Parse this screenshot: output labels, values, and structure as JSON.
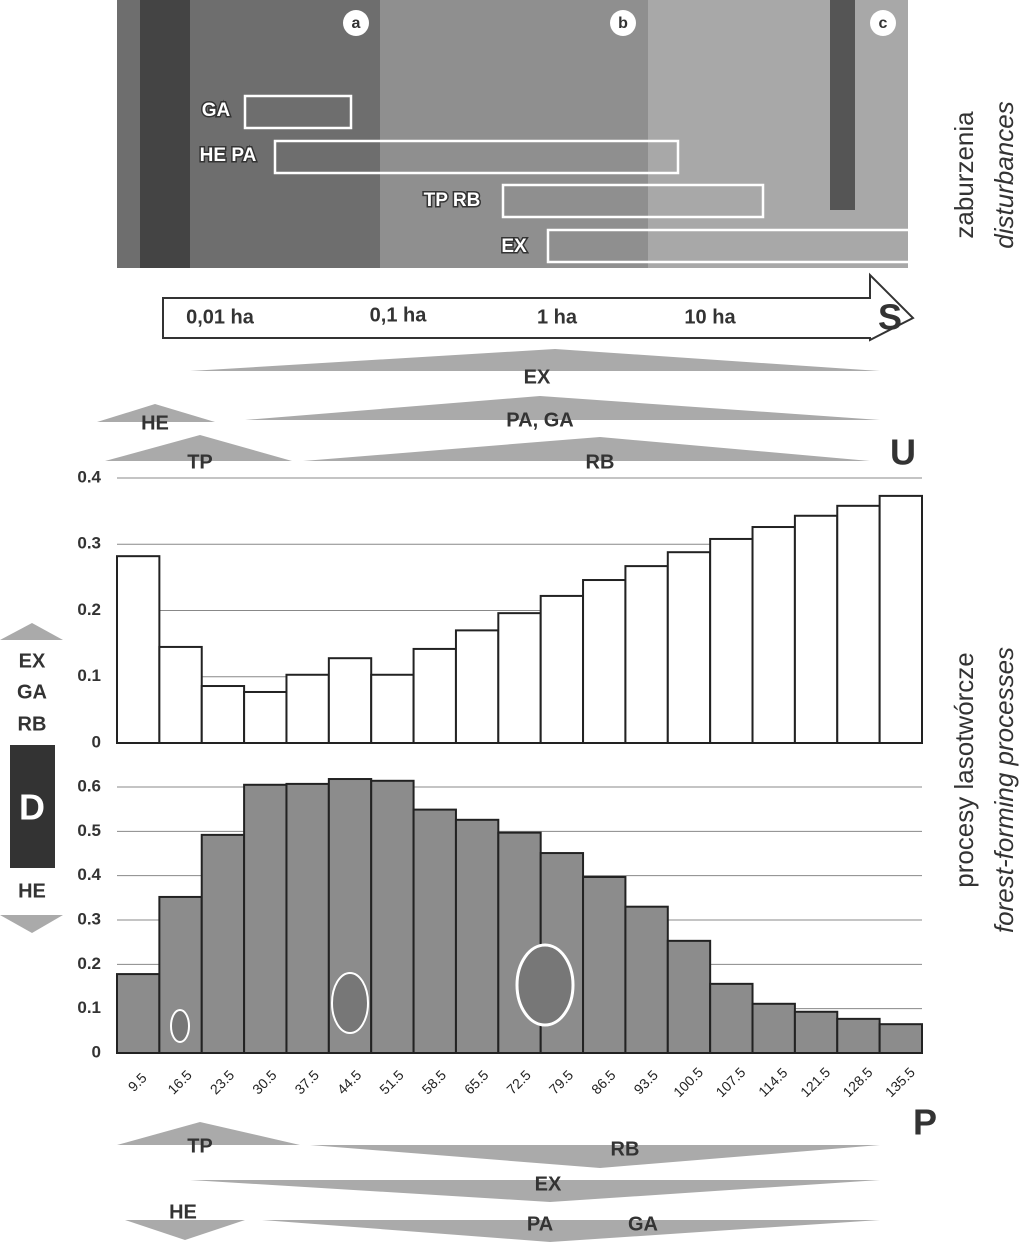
{
  "photo": {
    "panels": [
      "a",
      "b",
      "c"
    ],
    "boxes": [
      "GA",
      "HE PA",
      "TP RB",
      "EX"
    ]
  },
  "scale": {
    "labels": [
      "0,01 ha",
      "0,1 ha",
      "1 ha",
      "10 ha"
    ],
    "symbol": "S"
  },
  "upper_processes": {
    "labels": [
      "EX",
      "HE",
      "PA, GA",
      "TP",
      "RB"
    ],
    "symbol": "U"
  },
  "lower_processes": {
    "labels": [
      "TP",
      "RB",
      "EX",
      "HE",
      "PA",
      "GA"
    ],
    "symbol": "P"
  },
  "left_legend": {
    "up": [
      "EX",
      "GA",
      "RB"
    ],
    "symbol": "D",
    "down": [
      "HE"
    ]
  },
  "side_titles": {
    "top": [
      "zaburzenia",
      "disturbances"
    ],
    "bottom": [
      "procesy lasotwórcze",
      "forest-forming processes"
    ]
  },
  "chart_data": [
    {
      "type": "bar",
      "color": "#ffffff",
      "values": [
        0.282,
        0.145,
        0.086,
        0.077,
        0.103,
        0.128,
        0.103,
        0.142,
        0.17,
        0.196,
        0.222,
        0.246,
        0.267,
        0.288,
        0.308,
        0.326,
        0.343,
        0.358,
        0.373
      ],
      "ylim": [
        0,
        0.4
      ],
      "yticks": [
        0,
        0.1,
        0.2,
        0.3,
        0.4
      ],
      "grid": true
    },
    {
      "type": "bar",
      "color": "#8c8c8c",
      "categories": [
        "9.5",
        "16.5",
        "23.5",
        "30.5",
        "37.5",
        "44.5",
        "51.5",
        "58.5",
        "65.5",
        "72.5",
        "79.5",
        "86.5",
        "93.5",
        "100.5",
        "107.5",
        "114.5",
        "121.5",
        "128.5",
        "135.5"
      ],
      "values": [
        0.178,
        0.352,
        0.492,
        0.605,
        0.607,
        0.618,
        0.614,
        0.549,
        0.526,
        0.497,
        0.451,
        0.397,
        0.33,
        0.253,
        0.156,
        0.111,
        0.093,
        0.077,
        0.065
      ],
      "ylim": [
        0,
        0.6
      ],
      "yticks": [
        0,
        0.1,
        0.2,
        0.3,
        0.4,
        0.5,
        0.6
      ],
      "grid": true
    }
  ]
}
